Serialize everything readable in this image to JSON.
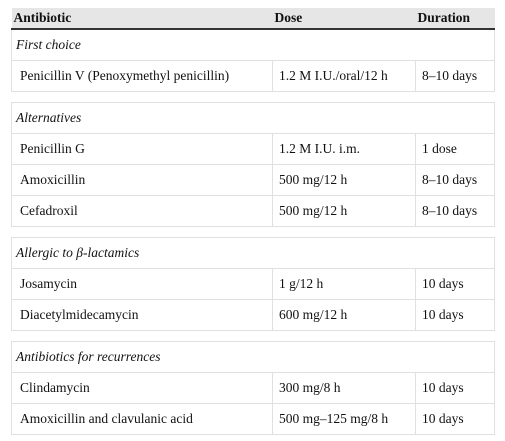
{
  "table": {
    "headers": [
      "Antibiotic",
      "Dose",
      "Duration"
    ],
    "sections": [
      {
        "title": "First choice",
        "rows": [
          [
            "Penicillin V (Penoxymethyl penicillin)",
            "1.2 M I.U./oral/12 h",
            "8–10 days"
          ]
        ]
      },
      {
        "title": "Alternatives",
        "rows": [
          [
            "Penicillin G",
            "1.2 M I.U. i.m.",
            "1 dose"
          ],
          [
            "Amoxicillin",
            "500 mg/12 h",
            "8–10 days"
          ],
          [
            "Cefadroxil",
            "500 mg/12 h",
            "8–10 days"
          ]
        ]
      },
      {
        "title": "Allergic to β-lactamics",
        "rows": [
          [
            "Josamycin",
            "1 g/12 h",
            "10 days"
          ],
          [
            "Diacetylmidecamycin",
            "600 mg/12 h",
            "10 days"
          ]
        ]
      },
      {
        "title": "Antibiotics for recurrences",
        "rows": [
          [
            "Clindamycin",
            "300 mg/8 h",
            "10 days"
          ],
          [
            "Amoxicillin and clavulanic acid",
            "500 mg–125 mg/8 h",
            "10 days"
          ]
        ]
      }
    ]
  }
}
